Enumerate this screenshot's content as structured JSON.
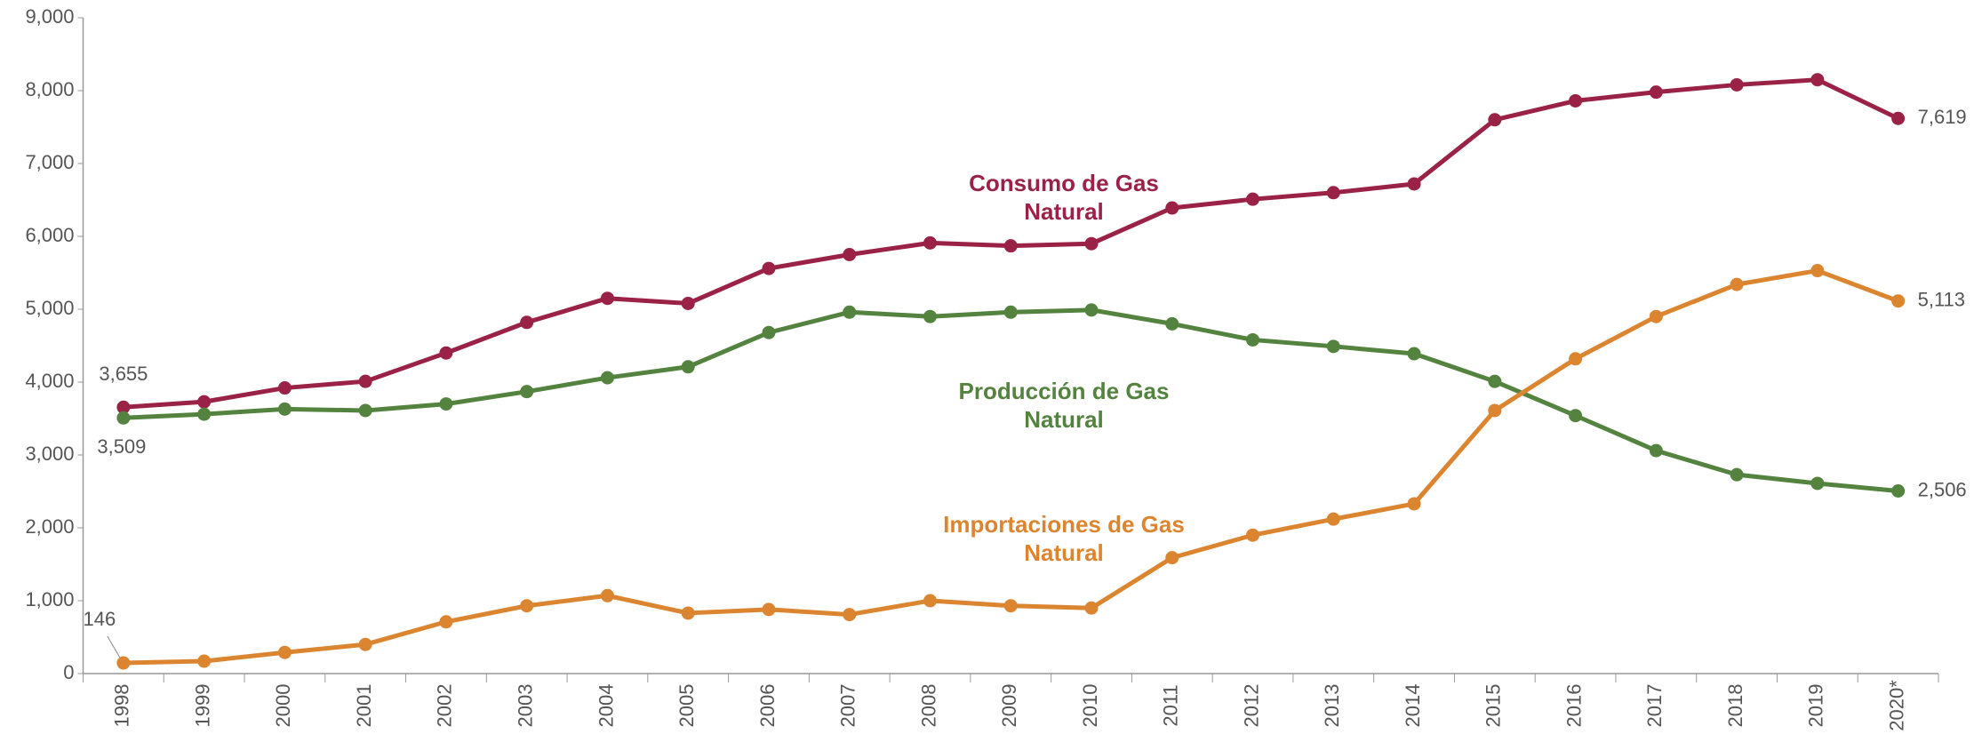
{
  "chart_data": {
    "type": "line",
    "categories": [
      "1998",
      "1999",
      "2000",
      "2001",
      "2002",
      "2003",
      "2004",
      "2005",
      "2006",
      "2007",
      "2008",
      "2009",
      "2010",
      "2011",
      "2012",
      "2013",
      "2014",
      "2015",
      "2016",
      "2017",
      "2018",
      "2019",
      "2020*"
    ],
    "ylim": [
      0,
      9000
    ],
    "yticks": [
      0,
      {
        "value": 1000,
        "label": "1,000"
      },
      {
        "value": 2000,
        "label": "2,000"
      },
      {
        "value": 3000,
        "label": "3,000"
      },
      {
        "value": 4000,
        "label": "4,000"
      },
      {
        "value": 5000,
        "label": "5,000"
      },
      {
        "value": 6000,
        "label": "6,000"
      },
      {
        "value": 7000,
        "label": "7,000"
      },
      {
        "value": 8000,
        "label": "8,000"
      },
      {
        "value": 9000,
        "label": "9,000"
      }
    ],
    "grid": false,
    "series": [
      {
        "name": "Consumo de Gas Natural",
        "color": "#9b2247",
        "values": [
          3655,
          3730,
          3920,
          4010,
          4400,
          4820,
          5150,
          5080,
          5560,
          5750,
          5910,
          5870,
          5900,
          6390,
          6510,
          6600,
          6720,
          7600,
          7860,
          7980,
          8080,
          8150,
          7619
        ],
        "value_labels": [
          "3,655",
          null,
          null,
          null,
          null,
          null,
          null,
          null,
          null,
          null,
          null,
          null,
          null,
          null,
          null,
          null,
          null,
          null,
          null,
          null,
          null,
          null,
          "7,619"
        ]
      },
      {
        "name": "Producción de Gas Natural",
        "color": "#548340",
        "values": [
          3509,
          3560,
          3630,
          3610,
          3700,
          3870,
          4060,
          4210,
          4680,
          4960,
          4900,
          4960,
          4990,
          4800,
          4580,
          4490,
          4390,
          4010,
          3540,
          3060,
          2730,
          2610,
          2506
        ],
        "value_labels": [
          "3,509",
          null,
          null,
          null,
          null,
          null,
          null,
          null,
          null,
          null,
          null,
          null,
          null,
          null,
          null,
          null,
          null,
          null,
          null,
          null,
          null,
          null,
          "2,506"
        ]
      },
      {
        "name": "Importaciones de Gas Natural",
        "color": "#dc8530",
        "values": [
          146,
          170,
          290,
          400,
          710,
          930,
          1070,
          830,
          880,
          810,
          1000,
          930,
          900,
          1590,
          1900,
          2120,
          2330,
          3610,
          4320,
          4900,
          5340,
          5530,
          5113
        ],
        "value_labels": [
          "146",
          null,
          null,
          null,
          null,
          null,
          null,
          null,
          null,
          null,
          null,
          null,
          null,
          null,
          null,
          null,
          null,
          null,
          null,
          null,
          null,
          null,
          "5,113"
        ]
      }
    ]
  }
}
